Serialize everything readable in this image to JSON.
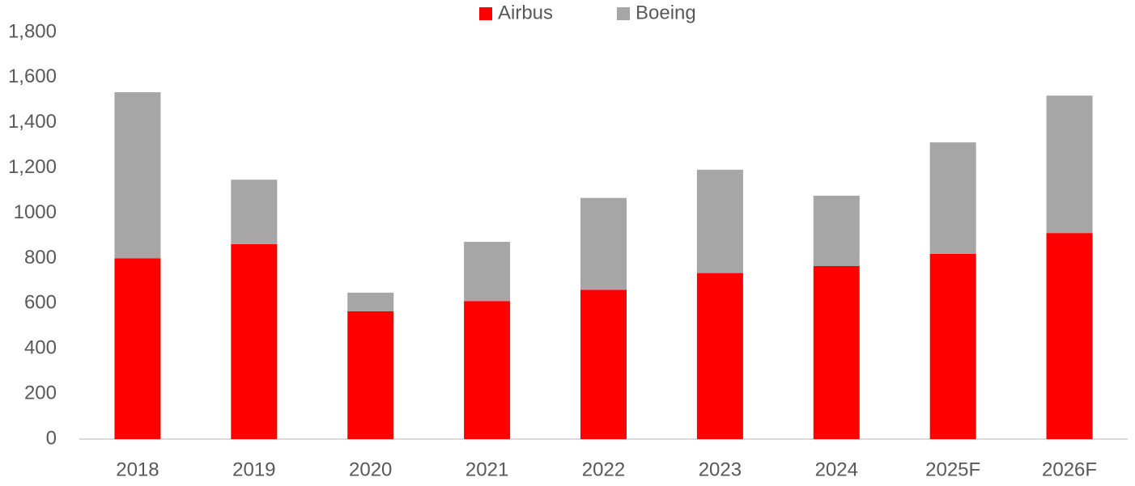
{
  "chart_data": {
    "type": "stacked_bar",
    "categories": [
      "2018",
      "2019",
      "2020",
      "2021",
      "2022",
      "2023",
      "2024",
      "2025F",
      "2026F"
    ],
    "series": [
      {
        "name": "Airbus",
        "color": "#ff0000",
        "values": [
          800,
          863,
          566,
          611,
          661,
          735,
          766,
          820,
          912
        ]
      },
      {
        "name": "Boeing",
        "color": "#a6a6a6",
        "values": [
          735,
          285,
          82,
          262,
          406,
          457,
          311,
          493,
          608
        ]
      }
    ],
    "ylim": [
      0,
      1800
    ],
    "yticks": [
      0,
      200,
      400,
      600,
      800,
      1000,
      {
        "value": 1200,
        "label": "1,200"
      },
      {
        "value": 1400,
        "label": "1,400"
      },
      {
        "value": 1600,
        "label": "1,600"
      },
      {
        "value": 1800,
        "label": "1,800"
      }
    ],
    "grid": false,
    "legend": "top"
  }
}
